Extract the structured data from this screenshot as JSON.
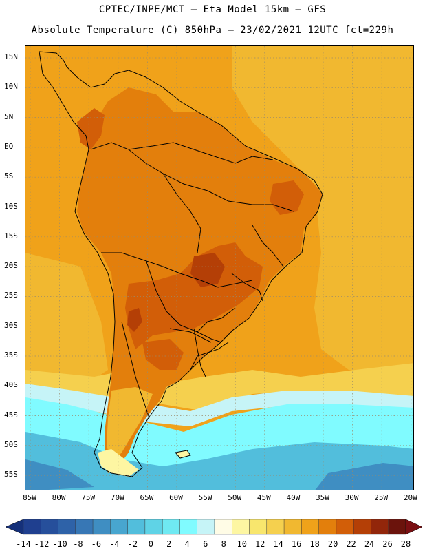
{
  "header": {
    "line1": "CPTEC/INPE/MCT –  Eta Model 15km – GFS",
    "line2": "Absolute Temperature (C) 850hPa – 23/02/2021 12UTC fct=229h"
  },
  "axes": {
    "lat_labels": [
      "15N",
      "10N",
      "5N",
      "EQ",
      "5S",
      "10S",
      "15S",
      "20S",
      "25S",
      "30S",
      "35S",
      "40S",
      "45S",
      "50S",
      "55S"
    ],
    "lon_labels": [
      "85W",
      "80W",
      "75W",
      "70W",
      "65W",
      "60W",
      "55W",
      "50W",
      "45W",
      "40W",
      "35W",
      "30W",
      "25W",
      "20W"
    ]
  },
  "colorbar": {
    "tick_labels": [
      "-14",
      "-12",
      "-10",
      "-8",
      "-6",
      "-4",
      "-2",
      "0",
      "2",
      "4",
      "6",
      "8",
      "10",
      "12",
      "14",
      "16",
      "18",
      "20",
      "22",
      "24",
      "26",
      "28"
    ],
    "colors": [
      "#1f3f8f",
      "#264f9b",
      "#2e62a8",
      "#3777b5",
      "#3f8ec2",
      "#48a6cf",
      "#52bedc",
      "#5fd3e6",
      "#6fe9f2",
      "#80fbff",
      "#c6f4f7",
      "#fffce6",
      "#fdf6a2",
      "#f8e66d",
      "#f5d04e",
      "#f1b830",
      "#f0a21a",
      "#e37f0c",
      "#d25e08",
      "#b43f06",
      "#92260a",
      "#6b130c"
    ],
    "under_color": "#15307a",
    "over_color": "#7a0f12"
  },
  "map_colors": {
    "ocean_warm": "#f0a21a",
    "ocean_mid": "#f1b830",
    "ocean_yellow": "#f5d04e",
    "land_hot": "#e37f0c",
    "land_very_hot": "#d25e08",
    "land_extreme": "#b43f06",
    "cold_pale": "#c6f4f7",
    "cold_cyan": "#80fbff",
    "cold_blue": "#52bedc",
    "cold_deep": "#3f8ec2",
    "pale_yellow": "#fdf6a2"
  }
}
